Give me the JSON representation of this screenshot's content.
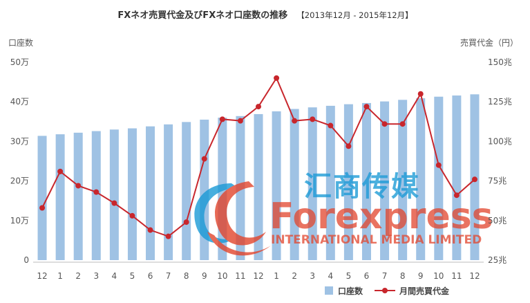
{
  "chart_data": {
    "type": "bar+line",
    "title": "FXネオ売買代金及びFXネオ口座数の推移",
    "subtitle": "【2013年12月 - 2015年12月】",
    "left_axis": {
      "label": "口座数",
      "ticks": [
        "0",
        "10万",
        "20万",
        "30万",
        "40万",
        "50万"
      ],
      "range": [
        0,
        500000
      ]
    },
    "right_axis": {
      "label": "売買代金（円）",
      "ticks": [
        "25兆",
        "50兆",
        "75兆",
        "100兆",
        "125兆",
        "150兆"
      ],
      "range": [
        25,
        150
      ]
    },
    "categories": [
      "12",
      "1",
      "2",
      "3",
      "4",
      "5",
      "6",
      "7",
      "8",
      "9",
      "10",
      "11",
      "12",
      "1",
      "2",
      "3",
      "4",
      "5",
      "6",
      "7",
      "8",
      "9",
      "10",
      "11",
      "12"
    ],
    "series": [
      {
        "name": "口座数",
        "type": "bar",
        "axis": "left",
        "color": "#9fc2e4",
        "values": [
          314000,
          318000,
          322000,
          326000,
          330000,
          333000,
          338000,
          343000,
          349000,
          355000,
          360000,
          364000,
          369000,
          376000,
          382000,
          386000,
          390000,
          394000,
          397000,
          401000,
          405000,
          409000,
          413000,
          416000,
          419000
        ]
      },
      {
        "name": "月間売買代金",
        "type": "line",
        "axis": "right",
        "color": "#c8262c",
        "values": [
          58,
          81,
          72,
          68,
          61,
          53,
          44,
          40,
          49,
          89,
          114,
          113,
          122,
          140,
          113,
          114,
          110,
          97,
          122,
          111,
          111,
          130,
          85,
          66,
          76
        ]
      }
    ],
    "legend_position": "bottom-right",
    "grid": false
  },
  "watermark": {
    "chinese": "汇商传媒",
    "brand": "Forexpress",
    "tagline": "INTERNATIONAL MEDIA LIMITED",
    "colors": {
      "blue": "#1a9ad6",
      "red": "#e2452d"
    }
  }
}
